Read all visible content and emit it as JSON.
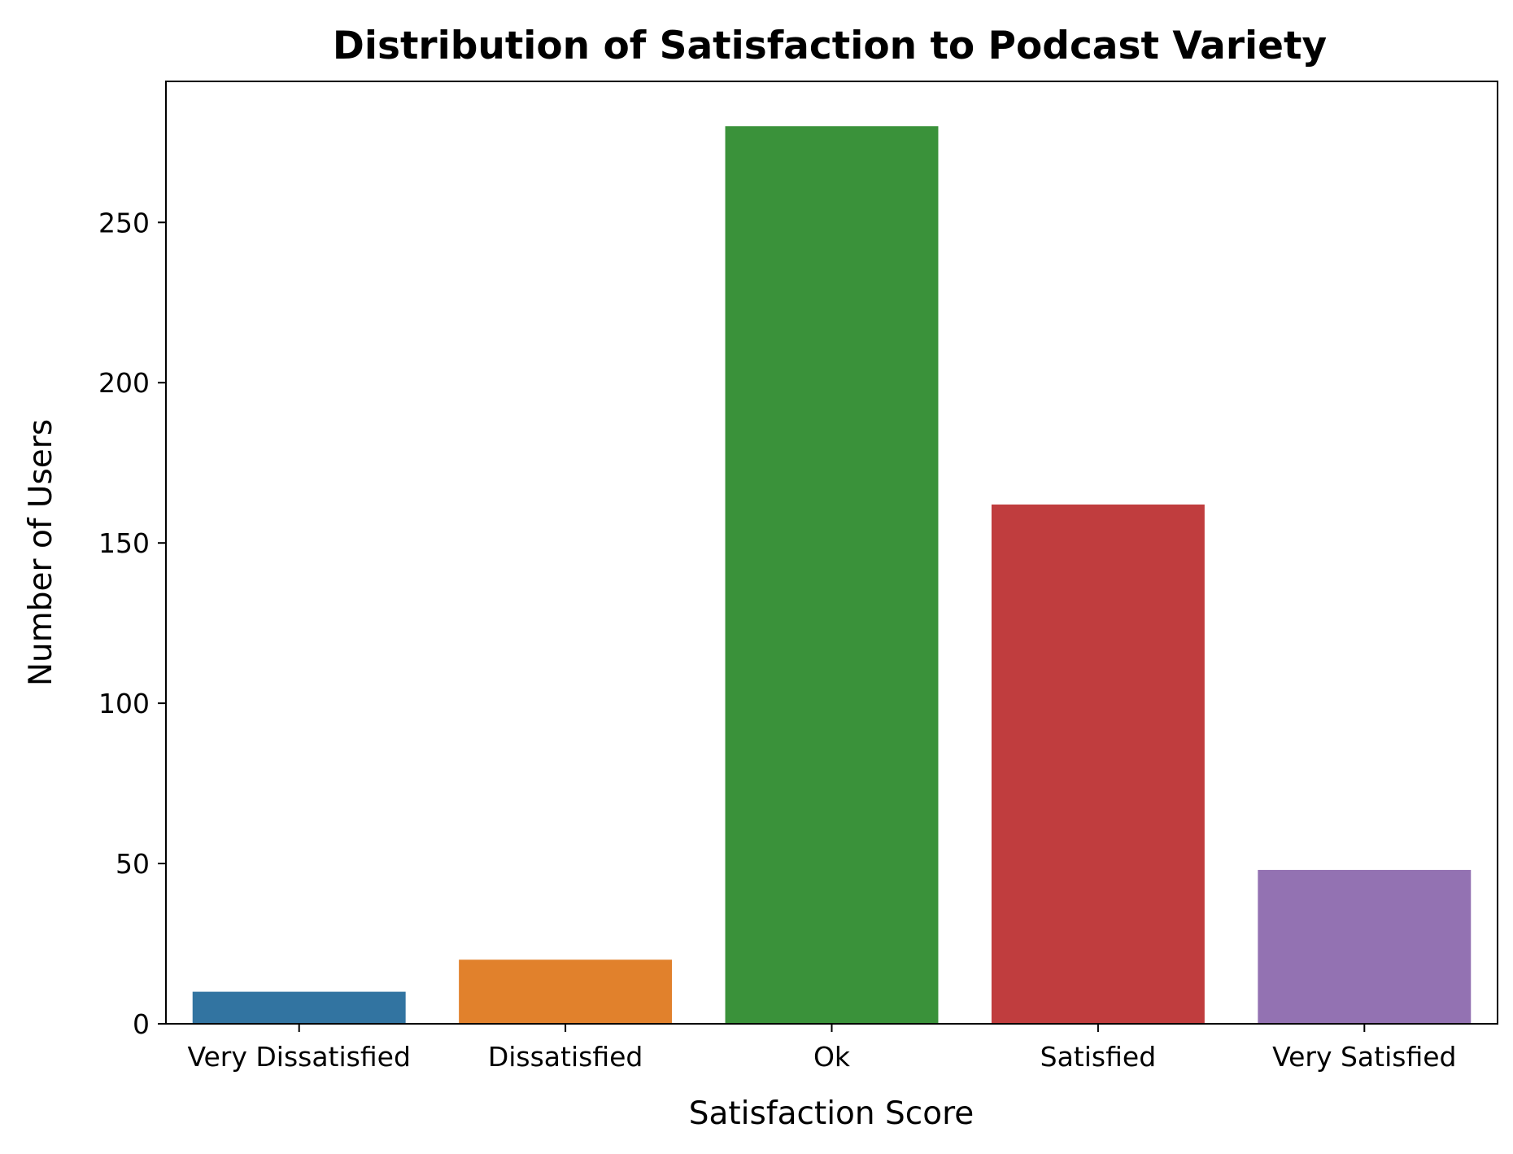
{
  "chart_data": {
    "type": "bar",
    "title": "Distribution of Satisfaction to Podcast Variety",
    "xlabel": "Satisfaction Score",
    "ylabel": "Number of Users",
    "categories": [
      "Very Dissatisfied",
      "Dissatisfied",
      "Ok",
      "Satisfied",
      "Very Satisfied"
    ],
    "values": [
      10,
      20,
      280,
      162,
      48
    ],
    "colors": [
      "#3274a1",
      "#e1812c",
      "#3a923a",
      "#c03d3e",
      "#9372b2"
    ],
    "ylim": [
      0,
      294
    ],
    "yticks": [
      0,
      50,
      100,
      150,
      200,
      250
    ],
    "grid": false,
    "legend": "none"
  }
}
